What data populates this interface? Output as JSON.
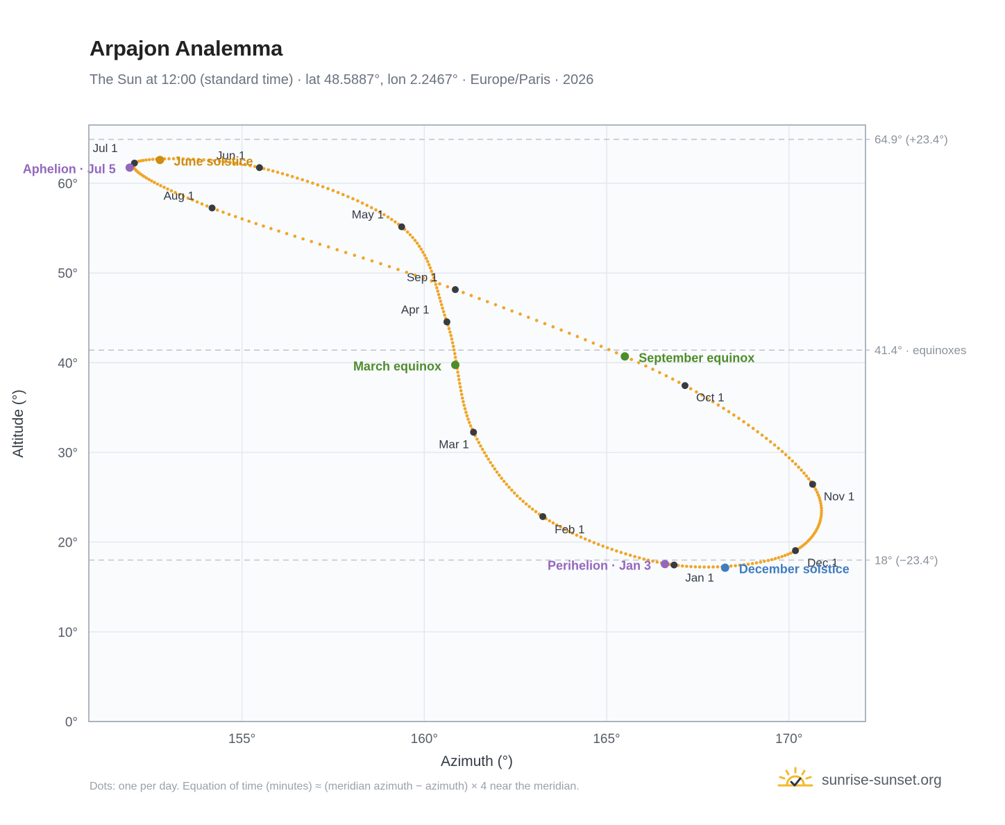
{
  "title": "Arpajon Analemma",
  "subtitle": "The Sun at 12:00 (standard time) · lat 48.5887°, lon 2.2467° · Europe/Paris · 2026",
  "footnote": "Dots: one per day. Equation of time (minutes) ≈ (meridian azimuth − azimuth) × 4 near the meridian.",
  "brand": {
    "text": "sunrise-sunset.org",
    "icon": "sun-check-icon"
  },
  "colors": {
    "path": "#f0a526",
    "month_marker": "#373b42",
    "apsis": "#9467bd",
    "equinox": "#4f8c2a",
    "june_solstice": "#d08c10",
    "december_solstice": "#3f7dc0",
    "plot_bg": "#f9fbfd",
    "grid": "#e4e8ee",
    "frame": "#9aa4b2",
    "ref_line": "#c2c6cc"
  },
  "chart_data": {
    "type": "scatter",
    "xlabel": "Azimuth (°)",
    "ylabel": "Altitude (°)",
    "xlim": [
      150.8,
      172.1
    ],
    "ylim": [
      0,
      66.5
    ],
    "xticks": [
      155,
      160,
      165,
      170
    ],
    "xtick_labels": [
      "155°",
      "160°",
      "165°",
      "170°"
    ],
    "yticks": [
      0,
      10,
      20,
      30,
      40,
      50,
      60
    ],
    "ytick_labels": [
      "0°",
      "10°",
      "20°",
      "30°",
      "40°",
      "50°",
      "60°"
    ],
    "grid": true,
    "reference_lines": [
      {
        "y": 64.9,
        "label": "64.9° (+23.4°)"
      },
      {
        "y": 41.4,
        "label": "41.4° · equinoxes"
      },
      {
        "y": 18.0,
        "label": "18° (−23.4°)"
      }
    ],
    "month_starts": [
      {
        "label": "Jan 1",
        "date": "2026-01-01",
        "azimuth": 166.85,
        "altitude": 17.45
      },
      {
        "label": "Feb 1",
        "date": "2026-02-01",
        "azimuth": 163.25,
        "altitude": 22.85
      },
      {
        "label": "Mar 1",
        "date": "2026-03-01",
        "azimuth": 161.35,
        "altitude": 32.25
      },
      {
        "label": "Apr 1",
        "date": "2026-04-01",
        "azimuth": 160.62,
        "altitude": 44.55
      },
      {
        "label": "May 1",
        "date": "2026-05-01",
        "azimuth": 159.38,
        "altitude": 55.15
      },
      {
        "label": "Jun 1",
        "date": "2026-06-01",
        "azimuth": 155.48,
        "altitude": 61.75
      },
      {
        "label": "Jul 1",
        "date": "2026-07-01",
        "azimuth": 152.05,
        "altitude": 62.25
      },
      {
        "label": "Aug 1",
        "date": "2026-08-01",
        "azimuth": 154.18,
        "altitude": 57.25
      },
      {
        "label": "Sep 1",
        "date": "2026-09-01",
        "azimuth": 160.85,
        "altitude": 48.15
      },
      {
        "label": "Oct 1",
        "date": "2026-10-01",
        "azimuth": 167.15,
        "altitude": 37.45
      },
      {
        "label": "Nov 1",
        "date": "2026-11-01",
        "azimuth": 170.65,
        "altitude": 26.45
      },
      {
        "label": "Dec 1",
        "date": "2026-12-01",
        "azimuth": 170.18,
        "altitude": 19.05
      }
    ],
    "events": [
      {
        "label": "Aphelion · Jul 5",
        "kind": "apsis",
        "azimuth": 151.92,
        "altitude": 61.75
      },
      {
        "label": "June solstice",
        "kind": "june_solstice",
        "azimuth": 152.75,
        "altitude": 62.6
      },
      {
        "label": "March equinox",
        "kind": "equinox",
        "azimuth": 160.85,
        "altitude": 39.75
      },
      {
        "label": "September equinox",
        "kind": "equinox",
        "azimuth": 165.5,
        "altitude": 40.7
      },
      {
        "label": "Perihelion · Jan 3",
        "kind": "apsis",
        "azimuth": 166.6,
        "altitude": 17.55
      },
      {
        "label": "December solstice",
        "kind": "december_solstice",
        "azimuth": 168.25,
        "altitude": 17.15
      }
    ]
  }
}
